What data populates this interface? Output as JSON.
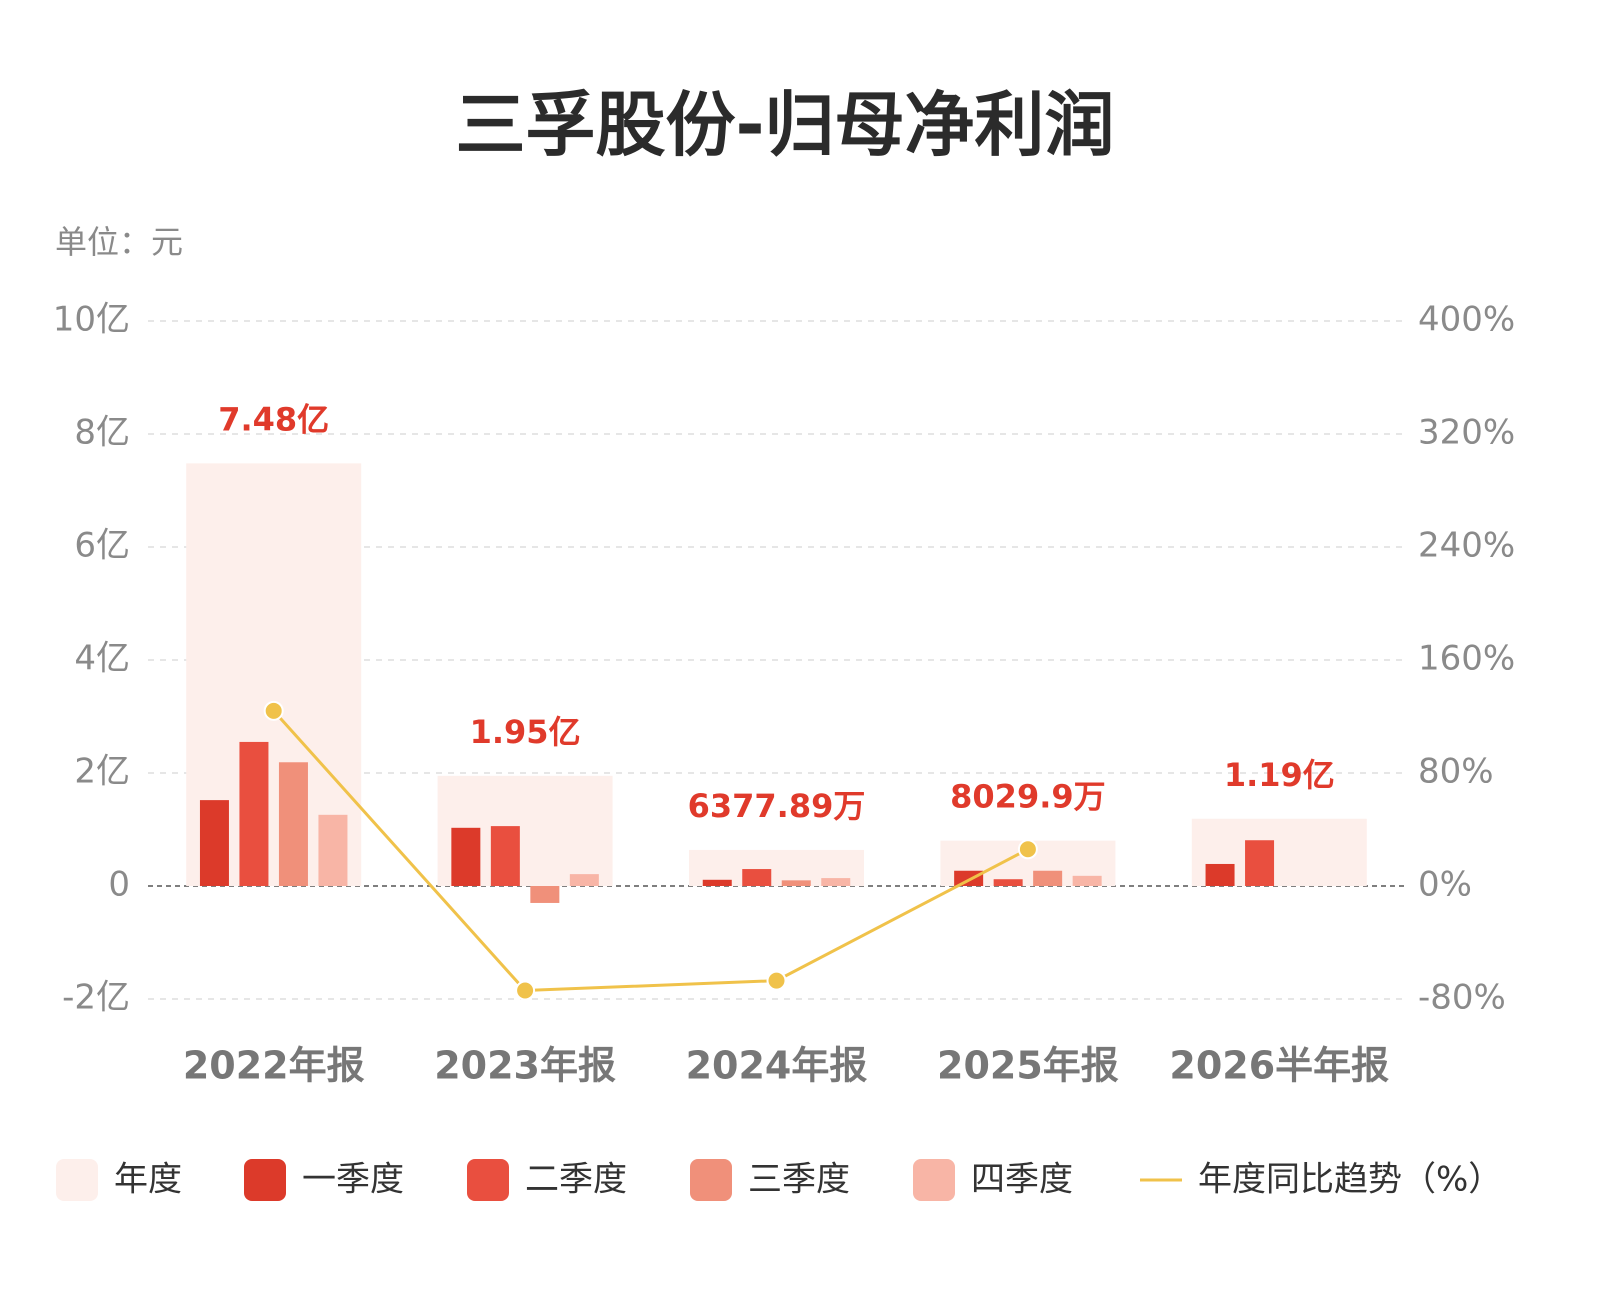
{
  "chart_data": {
    "type": "bar",
    "title": "三孚股份-归母净利润",
    "unit_label": "单位：元",
    "categories": [
      "2022年报",
      "2023年报",
      "2024年报",
      "2025年报",
      "2026半年报"
    ],
    "series": [
      {
        "name": "年度",
        "color": "#fdefeb",
        "values": [
          748000000,
          195000000,
          63778900,
          80299000,
          119000000
        ],
        "value_labels": [
          "7.48亿",
          "1.95亿",
          "6377.89万",
          "8029.9万",
          "1.19亿"
        ]
      },
      {
        "name": "一季度",
        "color": "#dc3a2a",
        "values": [
          152000000,
          103000000,
          11000000,
          27000000,
          39000000
        ]
      },
      {
        "name": "二季度",
        "color": "#e94f3f",
        "values": [
          255000000,
          106000000,
          30000000,
          12000000,
          81000000
        ]
      },
      {
        "name": "三季度",
        "color": "#f0907a",
        "values": [
          219000000,
          -30000000,
          10000000,
          27000000,
          null
        ]
      },
      {
        "name": "四季度",
        "color": "#f8b5a6",
        "values": [
          126000000,
          21000000,
          14000000,
          18000000,
          null
        ]
      },
      {
        "name": "年度同比趋势（%）",
        "type": "line",
        "axis": "y2",
        "color": "#f0c24a",
        "values": [
          124,
          -74,
          -67,
          26,
          null
        ]
      }
    ],
    "ylim": [
      -200000000,
      1000000000
    ],
    "yticks": [
      {
        "value": -200000000,
        "label": "-2亿"
      },
      0,
      {
        "value": 200000000,
        "label": "2亿"
      },
      {
        "value": 400000000,
        "label": "4亿"
      },
      {
        "value": 600000000,
        "label": "6亿"
      },
      {
        "value": 800000000,
        "label": "8亿"
      },
      {
        "value": 1000000000,
        "label": "10亿"
      }
    ],
    "y2lim": [
      -80,
      400
    ],
    "y2ticks": [
      {
        "value": -80,
        "label": "-80%"
      },
      {
        "value": 0,
        "label": "0%"
      },
      {
        "value": 80,
        "label": "80%"
      },
      {
        "value": 160,
        "label": "160%"
      },
      {
        "value": 240,
        "label": "240%"
      },
      {
        "value": 320,
        "label": "320%"
      },
      {
        "value": 400,
        "label": "400%"
      }
    ],
    "grid": true,
    "legend": "bottom"
  }
}
